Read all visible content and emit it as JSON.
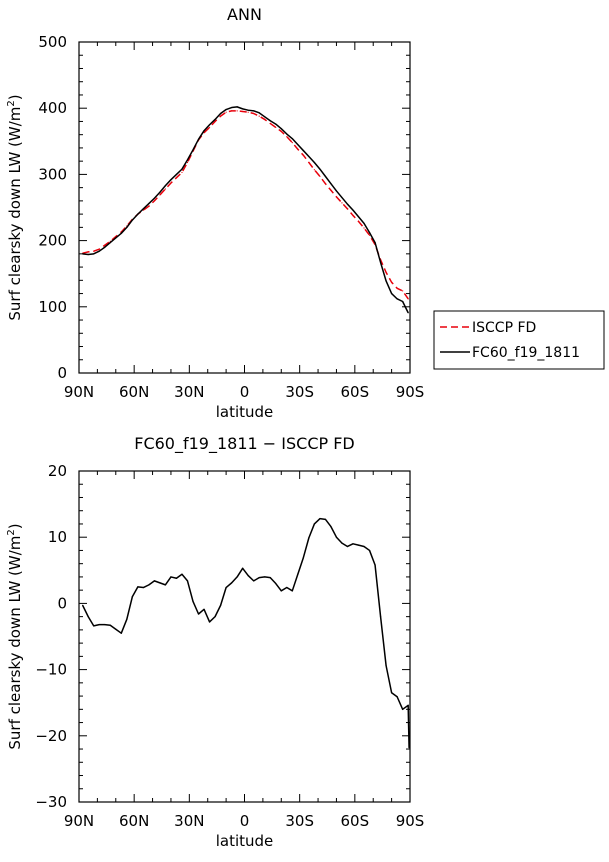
{
  "chart_data": [
    {
      "type": "line",
      "title": "ANN",
      "xlabel": "latitude",
      "ylabel_main": "Surf clearsky down LW (W/m",
      "ylabel_sup": "2",
      "ylabel_close": ")",
      "xlim": [
        90,
        -90
      ],
      "ylim": [
        0,
        500
      ],
      "xticks": [
        90,
        60,
        30,
        0,
        -30,
        -60,
        -90
      ],
      "xtick_labels": [
        "90N",
        "60N",
        "30N",
        "0",
        "30S",
        "60S",
        "90S"
      ],
      "yticks": [
        0,
        100,
        200,
        300,
        400,
        500
      ],
      "ytick_labels": [
        "0",
        "100",
        "200",
        "300",
        "400",
        "500"
      ],
      "legend": "right",
      "series": [
        {
          "name": "ISCCP FD",
          "color": "#e8000b",
          "dash": "dashed",
          "x": [
            88,
            85,
            82,
            79,
            76,
            73,
            70,
            67,
            64,
            61,
            58,
            55,
            52,
            49,
            46,
            43,
            40,
            37,
            34,
            31,
            28,
            25,
            22,
            19,
            16,
            13,
            10,
            7,
            4,
            1,
            -2,
            -5,
            -8,
            -11,
            -14,
            -17,
            -20,
            -23,
            -26,
            -29,
            -32,
            -35,
            -38,
            -41,
            -44,
            -47,
            -50,
            -53,
            -56,
            -59,
            -62,
            -65,
            -68,
            -71,
            -74,
            -77,
            -80,
            -83,
            -86,
            -89
          ],
          "y": [
            181,
            183,
            184,
            187,
            193,
            199,
            206,
            213,
            222,
            232,
            240,
            246,
            252,
            260,
            269,
            278,
            287,
            295,
            303,
            318,
            335,
            352,
            363,
            371,
            380,
            388,
            394,
            396,
            396,
            395,
            394,
            392,
            388,
            383,
            377,
            371,
            365,
            357,
            348,
            338,
            329,
            318,
            307,
            297,
            286,
            276,
            266,
            257,
            248,
            238,
            229,
            219,
            208,
            194,
            171,
            152,
            137,
            128,
            124,
            112
          ]
        },
        {
          "name": "FC60_f19_1811",
          "color": "#000000",
          "dash": "solid",
          "x": [
            88,
            85,
            82,
            79,
            76,
            73,
            70,
            67,
            64,
            61,
            58,
            55,
            52,
            49,
            46,
            43,
            40,
            37,
            34,
            31,
            28,
            25,
            22,
            19,
            16,
            13,
            10,
            7,
            4,
            1,
            -2,
            -5,
            -8,
            -11,
            -14,
            -17,
            -20,
            -23,
            -26,
            -29,
            -32,
            -35,
            -38,
            -41,
            -44,
            -47,
            -50,
            -53,
            -56,
            -59,
            -62,
            -65,
            -68,
            -71,
            -74,
            -77,
            -80,
            -83,
            -86,
            -89
          ],
          "y": [
            180,
            179,
            180,
            184,
            190,
            197,
            204,
            211,
            220,
            231,
            240,
            248,
            256,
            264,
            273,
            283,
            292,
            300,
            308,
            322,
            337,
            353,
            366,
            375,
            383,
            392,
            398,
            401,
            402,
            399,
            397,
            396,
            393,
            387,
            381,
            376,
            369,
            361,
            354,
            345,
            336,
            327,
            318,
            308,
            297,
            286,
            275,
            265,
            255,
            246,
            236,
            226,
            212,
            197,
            167,
            139,
            120,
            112,
            108,
            91
          ]
        }
      ]
    },
    {
      "type": "line",
      "title": "FC60_f19_1811 − ISCCP FD",
      "xlabel": "latitude",
      "ylabel_main": "Surf clearsky down LW (W/m",
      "ylabel_sup": "2",
      "ylabel_close": ")",
      "xlim": [
        90,
        -90
      ],
      "ylim": [
        -30,
        20
      ],
      "xticks": [
        90,
        60,
        30,
        0,
        -30,
        -60,
        -90
      ],
      "xtick_labels": [
        "90N",
        "60N",
        "30N",
        "0",
        "30S",
        "60S",
        "90S"
      ],
      "yticks": [
        -30,
        -20,
        -10,
        0,
        10,
        20
      ],
      "ytick_labels": [
        "−30",
        "−20",
        "−10",
        "0",
        "10",
        "20"
      ],
      "series": [
        {
          "color": "#000000",
          "dash": "solid",
          "x": [
            88,
            85,
            82,
            79,
            76,
            73,
            70,
            67,
            64,
            61,
            58,
            55,
            52,
            49,
            46,
            43,
            40,
            37,
            34,
            31,
            28,
            25,
            22,
            19,
            16,
            13,
            10,
            7,
            4,
            1,
            -2,
            -5,
            -8,
            -11,
            -14,
            -17,
            -20,
            -23,
            -26,
            -29,
            -32,
            -35,
            -38,
            -41,
            -44,
            -47,
            -50,
            -53,
            -56,
            -59,
            -62,
            -65,
            -68,
            -71,
            -74,
            -77,
            -80,
            -83,
            -86,
            -89
          ],
          "y": [
            -0.3,
            -2.0,
            -3.4,
            -3.2,
            -3.2,
            -3.3,
            -3.9,
            -4.5,
            -2.4,
            1.0,
            2.5,
            2.4,
            2.8,
            3.4,
            3.1,
            2.8,
            4.0,
            3.8,
            4.4,
            3.4,
            0.3,
            -1.6,
            -0.9,
            -2.8,
            -2.0,
            -0.3,
            2.4,
            3.1,
            4.0,
            5.3,
            4.2,
            3.4,
            3.9,
            4.0,
            3.9,
            3.0,
            1.9,
            2.4,
            1.9,
            4.4,
            6.9,
            9.9,
            12.0,
            12.8,
            12.7,
            11.6,
            10.0,
            9.1,
            8.6,
            9.0,
            8.8,
            8.6,
            8.0,
            5.8,
            -2.0,
            -9.4,
            -13.5,
            -14.1,
            -16.0,
            -15.4
          ]
        }
      ],
      "extra_series_tail": {
        "x": [
          -89.5
        ],
        "y": [
          -21.8
        ]
      }
    }
  ]
}
